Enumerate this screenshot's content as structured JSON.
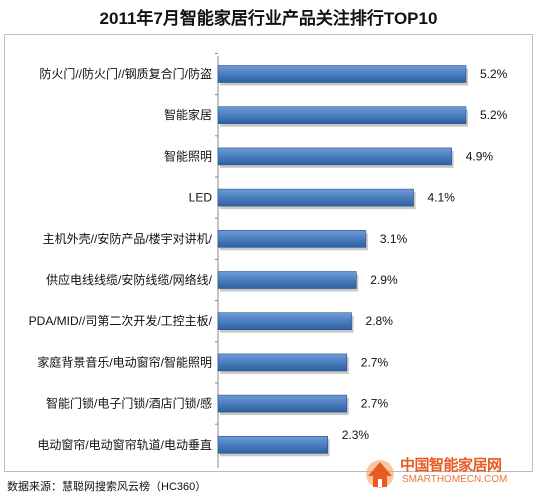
{
  "chart_data": {
    "type": "bar",
    "orientation": "horizontal",
    "title": "2011年7月智能家居行业产品关注排行TOP10",
    "categories": [
      "防火门//防火门//钢质复合门/防盗",
      "智能家居",
      "智能照明",
      "LED",
      "主机外壳//安防产品/楼宇对讲机/",
      "供应电线线缆/安防线缆/网络线/",
      "PDA/MID//司第二次开发/工控主板/",
      "家庭背景音乐/电动窗帘/智能照明",
      "智能门锁/电子门锁/酒店门锁/感",
      "电动窗帘/电动窗帘轨道/电动垂直"
    ],
    "values": [
      5.2,
      5.2,
      4.9,
      4.1,
      3.1,
      2.9,
      2.8,
      2.7,
      2.7,
      2.3
    ],
    "data_labels": [
      "5.2%",
      "5.2%",
      "4.9%",
      "4.1%",
      "3.1%",
      "2.9%",
      "2.8%",
      "2.7%",
      "2.7%",
      "2.3%"
    ],
    "xlim": [
      0,
      5.2
    ],
    "bar_color": "#4a7ebf",
    "grid": false,
    "legend": "none"
  },
  "footer": {
    "source": "数据来源：慧聪网搜索风云榜（HC360）"
  },
  "watermark": {
    "text": "中国智能家居网",
    "subtext": "SMARTHOMECN.COM",
    "color": "#e85b20"
  }
}
